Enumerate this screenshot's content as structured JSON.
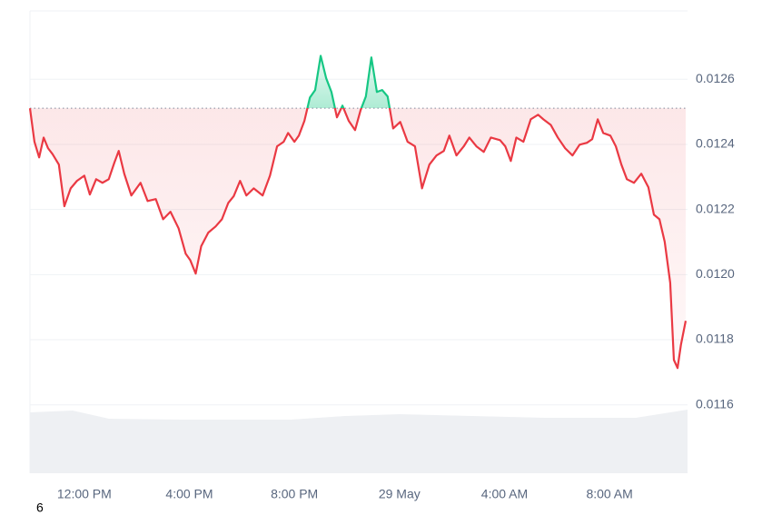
{
  "chart_data": {
    "type": "line",
    "x": [
      9.93,
      10.1,
      10.28,
      10.45,
      10.62,
      10.79,
      11.03,
      11.24,
      11.48,
      11.72,
      12.0,
      12.21,
      12.45,
      12.69,
      12.93,
      13.14,
      13.31,
      13.52,
      13.79,
      14.14,
      14.41,
      14.72,
      15.0,
      15.28,
      15.59,
      15.86,
      16.03,
      16.24,
      16.45,
      16.72,
      17.0,
      17.24,
      17.48,
      17.69,
      17.93,
      18.17,
      18.45,
      18.79,
      19.07,
      19.34,
      19.59,
      19.76,
      20.0,
      20.17,
      20.38,
      20.59,
      20.79,
      21.0,
      21.21,
      21.41,
      21.62,
      21.83,
      22.07,
      22.31,
      22.52,
      22.72,
      22.93,
      23.14,
      23.34,
      23.55,
      23.76,
      24.03,
      24.31,
      24.59,
      24.86,
      25.14,
      25.41,
      25.69,
      25.9,
      26.17,
      26.45,
      26.66,
      26.93,
      27.21,
      27.48,
      27.83,
      28.03,
      28.24,
      28.45,
      28.72,
      29.0,
      29.28,
      29.48,
      29.76,
      30.03,
      30.31,
      30.59,
      30.86,
      31.14,
      31.34,
      31.55,
      31.76,
      32.03,
      32.24,
      32.45,
      32.66,
      32.93,
      33.21,
      33.48,
      33.69,
      33.9,
      34.1,
      34.31,
      34.45,
      34.59,
      34.72,
      34.9
    ],
    "values": [
      0.012511,
      0.012408,
      0.01236,
      0.012421,
      0.012388,
      0.01237,
      0.012338,
      0.01221,
      0.012265,
      0.012288,
      0.012304,
      0.012246,
      0.012293,
      0.012282,
      0.012293,
      0.012343,
      0.01238,
      0.01231,
      0.012243,
      0.012282,
      0.012226,
      0.012232,
      0.01217,
      0.012193,
      0.012142,
      0.012064,
      0.012045,
      0.012003,
      0.012087,
      0.012129,
      0.012148,
      0.01217,
      0.01222,
      0.012241,
      0.012288,
      0.012243,
      0.012265,
      0.012243,
      0.012304,
      0.012394,
      0.012408,
      0.012435,
      0.012408,
      0.012427,
      0.012472,
      0.012544,
      0.012567,
      0.012672,
      0.012603,
      0.012561,
      0.012483,
      0.012519,
      0.012472,
      0.012444,
      0.012505,
      0.012547,
      0.012667,
      0.012561,
      0.012567,
      0.012547,
      0.012449,
      0.012469,
      0.012408,
      0.012394,
      0.012265,
      0.012338,
      0.012366,
      0.01238,
      0.012427,
      0.012366,
      0.012394,
      0.012421,
      0.012394,
      0.012377,
      0.012421,
      0.012413,
      0.012394,
      0.012349,
      0.012421,
      0.012408,
      0.012477,
      0.012491,
      0.012477,
      0.01246,
      0.012421,
      0.012388,
      0.012366,
      0.012399,
      0.012405,
      0.012416,
      0.012477,
      0.012435,
      0.012427,
      0.012394,
      0.012338,
      0.012293,
      0.012282,
      0.01231,
      0.012268,
      0.012184,
      0.01217,
      0.012101,
      0.011975,
      0.011738,
      0.011713,
      0.011785,
      0.011858
    ],
    "baseline": 0.012511,
    "up_color": "#16c784",
    "down_color": "#ea3943",
    "xlim": [
      9.93,
      34.97
    ],
    "xticks": [
      {
        "value": 12,
        "label": "12:00 PM"
      },
      {
        "value": 16,
        "label": "4:00 PM"
      },
      {
        "value": 20,
        "label": "8:00 PM"
      },
      {
        "value": 24,
        "label": "29 May"
      },
      {
        "value": 28,
        "label": "4:00 AM"
      },
      {
        "value": 32,
        "label": "8:00 AM"
      }
    ],
    "ylim": [
      0.01139,
      0.01281
    ],
    "yticks": [
      0.0116,
      0.0118,
      {
        "value": 0.012,
        "label": "0.0120"
      },
      0.0122,
      0.0124,
      0.0126
    ],
    "grid": true,
    "footnote": "6"
  }
}
